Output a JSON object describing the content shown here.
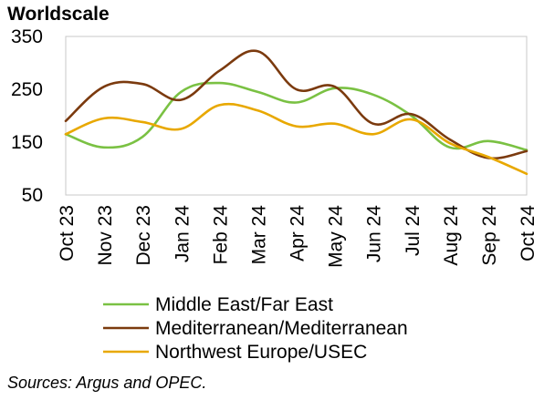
{
  "chart_data": {
    "type": "line",
    "ylabel": "Worldscale",
    "ylim": [
      50,
      350
    ],
    "yticks": [
      50,
      150,
      250,
      350
    ],
    "grid": false,
    "legend_position": "bottom",
    "categories": [
      "Oct 23",
      "Nov 23",
      "Dec 23",
      "Jan 24",
      "Feb 24",
      "Mar 24",
      "Apr 24",
      "May 24",
      "Jun 24",
      "Jul 24",
      "Aug 24",
      "Sep 24",
      "Oct 24"
    ],
    "series": [
      {
        "name": "Middle East/Far East",
        "color": "#7AC143",
        "values": [
          165,
          140,
          160,
          245,
          262,
          245,
          225,
          252,
          240,
          200,
          140,
          152,
          135
        ]
      },
      {
        "name": "Mediterranean/Mediterranean",
        "color": "#7B3A0E",
        "values": [
          190,
          255,
          260,
          230,
          285,
          322,
          250,
          255,
          185,
          203,
          155,
          120,
          133
        ]
      },
      {
        "name": "Northwest Europe/USEC",
        "color": "#E8A800",
        "values": [
          165,
          195,
          188,
          175,
          220,
          210,
          180,
          185,
          165,
          193,
          148,
          122,
          90
        ]
      }
    ]
  },
  "source_note": "Sources: Argus and OPEC."
}
